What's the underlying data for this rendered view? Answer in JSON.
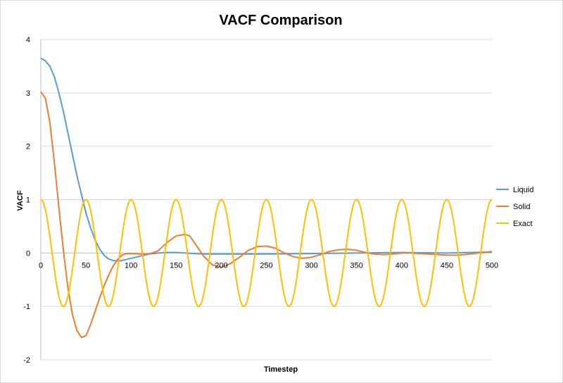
{
  "chart_data": {
    "type": "line",
    "title": "VACF Comparison",
    "xlabel": "Timestep",
    "ylabel": "VACF",
    "xlim": [
      0,
      500
    ],
    "ylim": [
      -2,
      4
    ],
    "xticks": [
      "0",
      "50",
      "100",
      "150",
      "200",
      "250",
      "300",
      "350",
      "400",
      "450",
      "500"
    ],
    "yticks": [
      "-2",
      "-1",
      "0",
      "1",
      "2",
      "3",
      "4"
    ],
    "grid": "horizontal",
    "legend_position": "right",
    "series": [
      {
        "name": "Liquid",
        "color": "#5B9BD5",
        "x": [
          0,
          5,
          10,
          15,
          20,
          25,
          30,
          35,
          40,
          45,
          50,
          55,
          60,
          65,
          70,
          75,
          80,
          85,
          90,
          95,
          100,
          110,
          120,
          130,
          140,
          150,
          160,
          170,
          180,
          200,
          250,
          300,
          350,
          400,
          450,
          500
        ],
        "y": [
          3.65,
          3.6,
          3.5,
          3.3,
          3.0,
          2.65,
          2.25,
          1.85,
          1.45,
          1.1,
          0.75,
          0.48,
          0.25,
          0.08,
          -0.04,
          -0.11,
          -0.14,
          -0.15,
          -0.14,
          -0.12,
          -0.1,
          -0.06,
          -0.02,
          0.0,
          0.01,
          0.01,
          0.0,
          -0.01,
          -0.02,
          -0.02,
          -0.02,
          -0.01,
          0.0,
          0.01,
          0.0,
          0.02
        ]
      },
      {
        "name": "Solid",
        "color": "#ED7D31",
        "x": [
          0,
          5,
          10,
          15,
          20,
          25,
          30,
          35,
          40,
          45,
          50,
          55,
          60,
          65,
          70,
          75,
          80,
          85,
          90,
          95,
          100,
          110,
          120,
          130,
          140,
          150,
          160,
          165,
          170,
          180,
          190,
          200,
          210,
          220,
          230,
          240,
          250,
          260,
          270,
          280,
          290,
          300,
          310,
          320,
          330,
          340,
          350,
          360,
          370,
          380,
          390,
          400,
          410,
          420,
          430,
          440,
          450,
          460,
          470,
          480,
          490,
          500
        ],
        "y": [
          3.02,
          2.9,
          2.45,
          1.7,
          0.85,
          0.05,
          -0.65,
          -1.15,
          -1.45,
          -1.58,
          -1.55,
          -1.35,
          -1.1,
          -0.85,
          -0.62,
          -0.42,
          -0.25,
          -0.12,
          -0.04,
          -0.01,
          -0.01,
          -0.02,
          -0.02,
          0.04,
          0.2,
          0.32,
          0.35,
          0.32,
          0.2,
          -0.05,
          -0.22,
          -0.27,
          -0.2,
          -0.08,
          0.05,
          0.12,
          0.13,
          0.09,
          0.0,
          -0.07,
          -0.1,
          -0.08,
          -0.03,
          0.03,
          0.06,
          0.07,
          0.05,
          0.01,
          -0.02,
          -0.03,
          -0.02,
          0.0,
          0.0,
          -0.01,
          -0.02,
          -0.03,
          -0.04,
          -0.04,
          -0.03,
          -0.01,
          0.01,
          0.03
        ]
      },
      {
        "name": "Exact",
        "color": "#FFC000",
        "function": "cos(2*pi*x/50)",
        "period": 50,
        "amplitude": 1,
        "x_start": 0,
        "x_end": 500
      }
    ]
  }
}
